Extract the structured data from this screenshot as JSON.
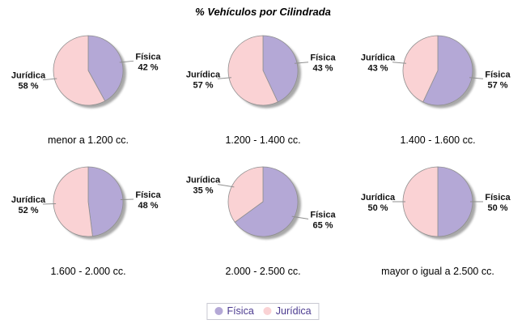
{
  "title": "% Vehículos por Cilindrada",
  "value_suffix": " %",
  "colors": {
    "fisica": "#b4a8d6",
    "juridica": "#fad2d4",
    "outline": "#8f8f8f",
    "shadow": "#9a9a9a",
    "label_text": "#111111",
    "legend_text": "#4b3a8f",
    "legend_border": "#c9c9d2"
  },
  "legend": {
    "items": [
      {
        "label": "Física",
        "color": "#b4a8d6"
      },
      {
        "label": "Jurídica",
        "color": "#fad2d4"
      }
    ]
  },
  "chart_data": [
    {
      "type": "pie",
      "title": "menor a 1.200 cc.",
      "labels": [
        "Física",
        "Jurídica"
      ],
      "values": [
        42,
        58
      ]
    },
    {
      "type": "pie",
      "title": "1.200 - 1.400 cc.",
      "labels": [
        "Física",
        "Jurídica"
      ],
      "values": [
        43,
        57
      ]
    },
    {
      "type": "pie",
      "title": "1.400 - 1.600 cc.",
      "labels": [
        "Física",
        "Jurídica"
      ],
      "values": [
        57,
        43
      ]
    },
    {
      "type": "pie",
      "title": "1.600 - 2.000 cc.",
      "labels": [
        "Física",
        "Jurídica"
      ],
      "values": [
        48,
        52
      ]
    },
    {
      "type": "pie",
      "title": "2.000 - 2.500 cc.",
      "labels": [
        "Física",
        "Jurídica"
      ],
      "values": [
        65,
        35
      ]
    },
    {
      "type": "pie",
      "title": "mayor o igual a 2.500 cc.",
      "labels": [
        "Física",
        "Jurídica"
      ],
      "values": [
        50,
        50
      ]
    }
  ]
}
